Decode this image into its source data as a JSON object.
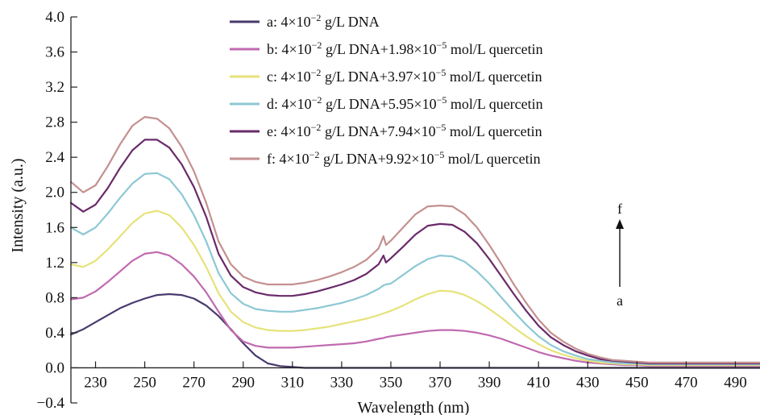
{
  "chart_data": {
    "type": "line",
    "title": "",
    "xlabel": "Wavelength (nm)",
    "ylabel": "Intensity (a.u.)",
    "xlim": [
      220,
      500
    ],
    "ylim": [
      -0.4,
      4.0
    ],
    "x_tick_labels": [
      "230",
      "250",
      "270",
      "290",
      "310",
      "330",
      "350",
      "370",
      "390",
      "410",
      "430",
      "450",
      "470",
      "490"
    ],
    "y_tick_labels": [
      "−0.4",
      "0.0",
      "0.4",
      "0.8",
      "1.2",
      "1.6",
      "2.0",
      "2.4",
      "2.8",
      "3.2",
      "3.6",
      "4.0"
    ],
    "legend_position": "top-center",
    "arrow": {
      "from_label": "a",
      "to_label": "f"
    },
    "x": [
      220,
      225,
      230,
      235,
      240,
      245,
      250,
      255,
      260,
      265,
      270,
      275,
      280,
      285,
      290,
      295,
      300,
      305,
      310,
      315,
      320,
      325,
      330,
      335,
      340,
      345,
      347,
      348,
      350,
      355,
      360,
      365,
      370,
      375,
      380,
      385,
      390,
      395,
      400,
      405,
      410,
      415,
      420,
      425,
      430,
      435,
      440,
      445,
      450,
      455,
      460,
      465,
      470,
      475,
      480,
      485,
      490,
      495,
      500
    ],
    "series": [
      {
        "name_prefix": "a: 4×10",
        "name_exp": "−2",
        "name_mid": " g/L DNA",
        "name_exp2": "",
        "name_suffix": "",
        "color": "#4a3a6e",
        "values": [
          0.38,
          0.44,
          0.52,
          0.6,
          0.68,
          0.74,
          0.79,
          0.83,
          0.84,
          0.83,
          0.79,
          0.71,
          0.59,
          0.44,
          0.28,
          0.14,
          0.05,
          0.02,
          0.01,
          0.0,
          0.0,
          0.0,
          0.0,
          0.0,
          0.0,
          0.0,
          0.0,
          0.0,
          0.0,
          0.0,
          0.0,
          0.0,
          0.0,
          0.0,
          0.0,
          0.0,
          0.0,
          0.0,
          0.0,
          0.0,
          0.0,
          0.0,
          0.0,
          0.0,
          0.0,
          0.0,
          0.0,
          0.0,
          0.0,
          0.0,
          0.0,
          0.0,
          0.0,
          0.0,
          0.0,
          0.0,
          0.0,
          0.0,
          0.0
        ]
      },
      {
        "name_prefix": "b: 4×10",
        "name_exp": "−2",
        "name_mid": " g/L DNA+1.98×10",
        "name_exp2": "−5",
        "name_suffix": "  mol/L quercetin",
        "color": "#c06ab0",
        "values": [
          0.78,
          0.8,
          0.87,
          0.98,
          1.1,
          1.22,
          1.3,
          1.32,
          1.28,
          1.18,
          1.04,
          0.86,
          0.64,
          0.43,
          0.3,
          0.25,
          0.23,
          0.23,
          0.23,
          0.24,
          0.25,
          0.26,
          0.27,
          0.28,
          0.3,
          0.33,
          0.34,
          0.35,
          0.36,
          0.38,
          0.4,
          0.42,
          0.43,
          0.43,
          0.42,
          0.4,
          0.37,
          0.33,
          0.28,
          0.23,
          0.18,
          0.14,
          0.11,
          0.08,
          0.06,
          0.05,
          0.04,
          0.03,
          0.03,
          0.02,
          0.02,
          0.02,
          0.02,
          0.02,
          0.02,
          0.02,
          0.02,
          0.02,
          0.02
        ]
      },
      {
        "name_prefix": "c: 4×10",
        "name_exp": "−2",
        "name_mid": " g/L DNA+3.97×10",
        "name_exp2": "−5",
        "name_suffix": "  mol/L quercetin",
        "color": "#e6e27a",
        "values": [
          1.18,
          1.15,
          1.22,
          1.35,
          1.5,
          1.65,
          1.76,
          1.79,
          1.74,
          1.6,
          1.4,
          1.15,
          0.85,
          0.64,
          0.52,
          0.46,
          0.43,
          0.42,
          0.42,
          0.43,
          0.45,
          0.47,
          0.5,
          0.53,
          0.56,
          0.6,
          0.62,
          0.63,
          0.65,
          0.71,
          0.78,
          0.84,
          0.88,
          0.87,
          0.83,
          0.76,
          0.67,
          0.57,
          0.46,
          0.36,
          0.27,
          0.2,
          0.15,
          0.11,
          0.08,
          0.06,
          0.05,
          0.04,
          0.04,
          0.03,
          0.03,
          0.03,
          0.03,
          0.03,
          0.03,
          0.03,
          0.03,
          0.03,
          0.03
        ]
      },
      {
        "name_prefix": "d: 4×10",
        "name_exp": "−2",
        "name_mid": " g/L DNA+5.95×10",
        "name_exp2": "−5",
        "name_suffix": "  mol/L quercetin",
        "color": "#8cc8d4",
        "values": [
          1.6,
          1.52,
          1.6,
          1.76,
          1.94,
          2.1,
          2.21,
          2.22,
          2.15,
          1.98,
          1.74,
          1.44,
          1.08,
          0.85,
          0.73,
          0.67,
          0.65,
          0.64,
          0.64,
          0.66,
          0.68,
          0.71,
          0.74,
          0.78,
          0.83,
          0.9,
          0.94,
          0.95,
          0.96,
          1.06,
          1.16,
          1.24,
          1.28,
          1.27,
          1.21,
          1.1,
          0.96,
          0.8,
          0.64,
          0.49,
          0.36,
          0.26,
          0.19,
          0.14,
          0.1,
          0.08,
          0.06,
          0.05,
          0.05,
          0.04,
          0.04,
          0.04,
          0.04,
          0.04,
          0.04,
          0.04,
          0.04,
          0.04,
          0.04
        ]
      },
      {
        "name_prefix": "e: 4×10",
        "name_exp": "−2",
        "name_mid": " g/L DNA+7.94×10",
        "name_exp2": "−5",
        "name_suffix": "  mol/L quercetin",
        "color": "#6a2a6a",
        "values": [
          1.88,
          1.78,
          1.86,
          2.05,
          2.28,
          2.48,
          2.6,
          2.6,
          2.51,
          2.32,
          2.06,
          1.72,
          1.3,
          1.05,
          0.92,
          0.86,
          0.83,
          0.82,
          0.82,
          0.84,
          0.87,
          0.91,
          0.95,
          1.0,
          1.07,
          1.18,
          1.28,
          1.2,
          1.25,
          1.38,
          1.52,
          1.62,
          1.64,
          1.63,
          1.55,
          1.42,
          1.24,
          1.04,
          0.84,
          0.65,
          0.48,
          0.35,
          0.26,
          0.19,
          0.14,
          0.1,
          0.08,
          0.07,
          0.06,
          0.05,
          0.05,
          0.05,
          0.05,
          0.05,
          0.05,
          0.05,
          0.05,
          0.05,
          0.05
        ]
      },
      {
        "name_prefix": "f: 4×10",
        "name_exp": "−2",
        "name_mid": " g/L DNA+9.92×10",
        "name_exp2": "−5",
        "name_suffix": "  mol/L quercetin",
        "color": "#c49090",
        "values": [
          2.12,
          2.0,
          2.08,
          2.3,
          2.55,
          2.76,
          2.86,
          2.84,
          2.73,
          2.52,
          2.24,
          1.88,
          1.44,
          1.18,
          1.04,
          0.98,
          0.95,
          0.95,
          0.95,
          0.97,
          1.0,
          1.04,
          1.09,
          1.15,
          1.23,
          1.36,
          1.5,
          1.4,
          1.45,
          1.6,
          1.75,
          1.84,
          1.85,
          1.84,
          1.75,
          1.6,
          1.4,
          1.18,
          0.95,
          0.74,
          0.55,
          0.4,
          0.3,
          0.22,
          0.16,
          0.12,
          0.09,
          0.08,
          0.07,
          0.06,
          0.06,
          0.06,
          0.06,
          0.06,
          0.06,
          0.06,
          0.06,
          0.06,
          0.06
        ]
      }
    ]
  }
}
